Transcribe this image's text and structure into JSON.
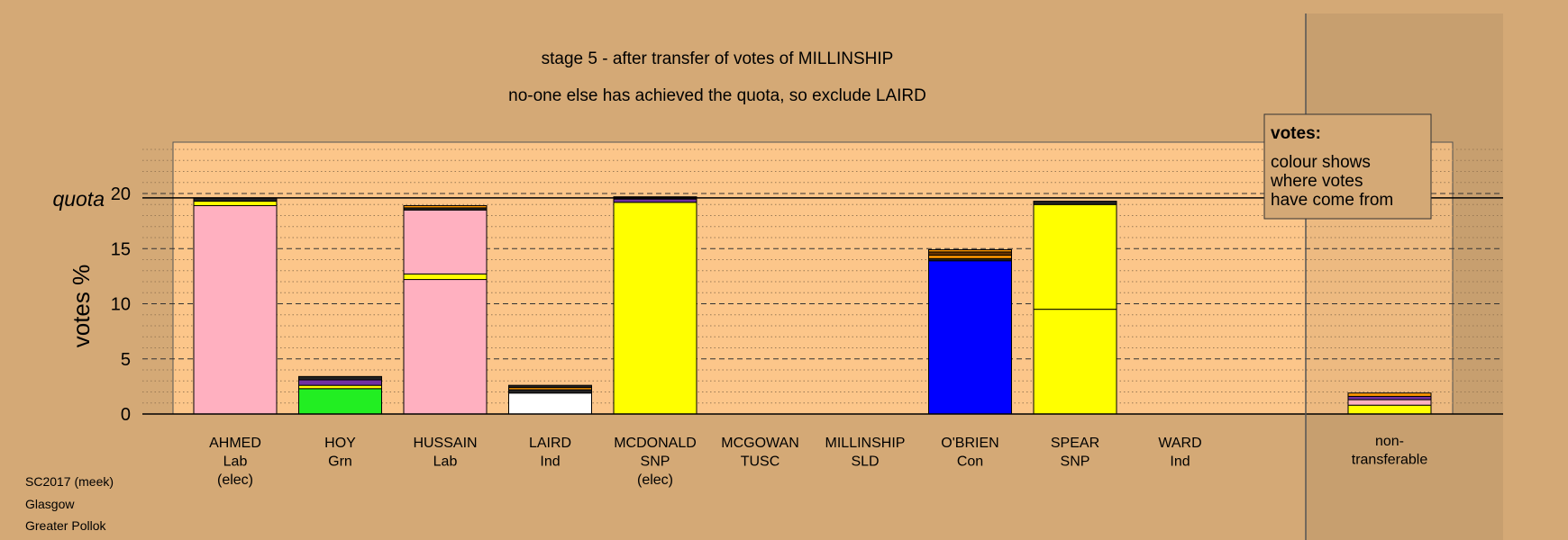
{
  "title_line1": "stage 5 - after transfer of votes of MILLINSHIP",
  "title_line2": "no-one else has achieved the quota, so exclude LAIRD",
  "legend": {
    "heading": "votes:",
    "lines": [
      "colour shows",
      "where votes",
      "have come from"
    ]
  },
  "footer": [
    "SC2017 (meek)",
    "Glasgow",
    "Greater Pollok"
  ],
  "colors": {
    "background": "#d4a976",
    "plot_area": "#fcc68a",
    "Lab": "#ffb0c0",
    "SNP": "#ffff00",
    "Grn": "#22ee22",
    "Con": "#0000ff",
    "Ind": "#ffffff",
    "SLD": "#ff9900",
    "TUSC": "#aa0000",
    "purple": "#7030a0",
    "brown": "#663300",
    "dark": "#222222"
  },
  "chart_data": {
    "type": "bar",
    "stacked": true,
    "ylabel": "votes %",
    "quota_label": "quota",
    "quota": 19.6,
    "ylim": [
      0,
      25
    ],
    "yticks": [
      0,
      5,
      10,
      15,
      20
    ],
    "grid": true,
    "legend_position": "top-right",
    "categories": [
      {
        "name": "AHMED",
        "party": "Lab",
        "note": "(elec)"
      },
      {
        "name": "HOY",
        "party": "Grn",
        "note": ""
      },
      {
        "name": "HUSSAIN",
        "party": "Lab",
        "note": ""
      },
      {
        "name": "LAIRD",
        "party": "Ind",
        "note": ""
      },
      {
        "name": "MCDONALD",
        "party": "SNP",
        "note": "(elec)"
      },
      {
        "name": "MCGOWAN",
        "party": "TUSC",
        "note": ""
      },
      {
        "name": "MILLINSHIP",
        "party": "SLD",
        "note": ""
      },
      {
        "name": "O'BRIEN",
        "party": "Con",
        "note": ""
      },
      {
        "name": "SPEAR",
        "party": "SNP",
        "note": ""
      },
      {
        "name": "WARD",
        "party": "Ind",
        "note": ""
      }
    ],
    "nontransferable_label": [
      "non-",
      "transferable"
    ],
    "bars": [
      [
        {
          "source": "Lab",
          "value": 18.9
        },
        {
          "source": "SNP",
          "value": 0.4
        },
        {
          "source": "dark",
          "value": 0.3
        }
      ],
      [
        {
          "source": "Grn",
          "value": 2.3
        },
        {
          "source": "SNP",
          "value": 0.3
        },
        {
          "source": "purple",
          "value": 0.5
        },
        {
          "source": "dark",
          "value": 0.3
        }
      ],
      [
        {
          "source": "Lab",
          "value": 12.2
        },
        {
          "source": "SNP",
          "value": 0.5
        },
        {
          "source": "Lab",
          "value": 5.8
        },
        {
          "source": "dark",
          "value": 0.2
        },
        {
          "source": "SLD",
          "value": 0.2
        }
      ],
      [
        {
          "source": "Ind",
          "value": 1.9
        },
        {
          "source": "dark",
          "value": 0.3
        },
        {
          "source": "SLD",
          "value": 0.2
        },
        {
          "source": "dark",
          "value": 0.2
        }
      ],
      [
        {
          "source": "SNP",
          "value": 19.2
        },
        {
          "source": "purple",
          "value": 0.3
        },
        {
          "source": "dark",
          "value": 0.2
        }
      ],
      [],
      [],
      [
        {
          "source": "Con",
          "value": 13.9
        },
        {
          "source": "dark",
          "value": 0.2
        },
        {
          "source": "SLD",
          "value": 0.3
        },
        {
          "source": "brown",
          "value": 0.3
        },
        {
          "source": "SLD",
          "value": 0.2
        }
      ],
      [
        {
          "source": "SNP",
          "value": 9.5
        },
        {
          "source": "SNP",
          "value": 9.5
        },
        {
          "source": "dark",
          "value": 0.3
        }
      ],
      []
    ],
    "nontransferable": [
      {
        "source": "SNP",
        "value": 0.8
      },
      {
        "source": "Lab",
        "value": 0.5
      },
      {
        "source": "purple",
        "value": 0.3
      },
      {
        "source": "SLD",
        "value": 0.3
      }
    ]
  }
}
